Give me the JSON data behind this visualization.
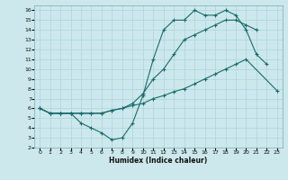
{
  "xlabel": "Humidex (Indice chaleur)",
  "background_color": "#cce8ec",
  "grid_color": "#b0d8de",
  "line_color": "#1a6b6b",
  "xlim": [
    -0.5,
    23.5
  ],
  "ylim": [
    2,
    16.5
  ],
  "xticks": [
    0,
    1,
    2,
    3,
    4,
    5,
    6,
    7,
    8,
    9,
    10,
    11,
    12,
    13,
    14,
    15,
    16,
    17,
    18,
    19,
    20,
    21,
    22,
    23
  ],
  "yticks": [
    2,
    3,
    4,
    5,
    6,
    7,
    8,
    9,
    10,
    11,
    12,
    13,
    14,
    15,
    16
  ],
  "line1_x": [
    0,
    1,
    2,
    3,
    4,
    5,
    6,
    7,
    8,
    9,
    10,
    11,
    12,
    13,
    14,
    15,
    16,
    17,
    18,
    19,
    20,
    21,
    22
  ],
  "line1_y": [
    6,
    5.5,
    5.5,
    5.5,
    4.5,
    4.0,
    3.5,
    2.8,
    3.0,
    4.5,
    7.3,
    11.0,
    14.0,
    15.0,
    15.0,
    16.0,
    15.5,
    15.5,
    16.0,
    15.5,
    14.0,
    11.5,
    10.5
  ],
  "line2_x": [
    0,
    1,
    2,
    3,
    4,
    5,
    6,
    7,
    8,
    9,
    10,
    11,
    12,
    13,
    14,
    15,
    16,
    17,
    18,
    19,
    20,
    21
  ],
  "line2_y": [
    6,
    5.5,
    5.5,
    5.5,
    5.5,
    5.5,
    5.5,
    5.8,
    6.0,
    6.5,
    7.5,
    9.0,
    10.0,
    11.5,
    13.0,
    13.5,
    14.0,
    14.5,
    15.0,
    15.0,
    14.5,
    14.0
  ],
  "line3_x": [
    0,
    1,
    2,
    3,
    4,
    5,
    6,
    7,
    8,
    9,
    10,
    11,
    12,
    13,
    14,
    15,
    16,
    17,
    18,
    19,
    20,
    23
  ],
  "line3_y": [
    6,
    5.5,
    5.5,
    5.5,
    5.5,
    5.5,
    5.5,
    5.8,
    6.0,
    6.3,
    6.5,
    7.0,
    7.3,
    7.7,
    8.0,
    8.5,
    9.0,
    9.5,
    10.0,
    10.5,
    11.0,
    7.8
  ]
}
